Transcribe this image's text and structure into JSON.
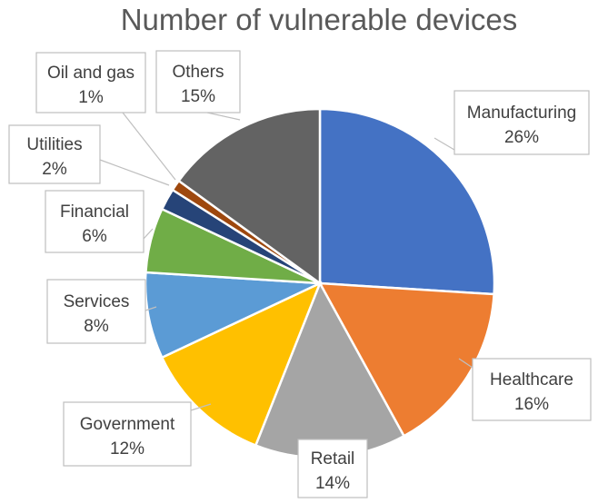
{
  "chart_data": {
    "type": "pie",
    "title": "Number of vulnerable devices",
    "slices": [
      {
        "label": "Manufacturing",
        "value": 26,
        "value_label": "26%",
        "color": "#4472C4"
      },
      {
        "label": "Healthcare",
        "value": 16,
        "value_label": "16%",
        "color": "#ED7D31"
      },
      {
        "label": "Retail",
        "value": 14,
        "value_label": "14%",
        "color": "#A5A5A5"
      },
      {
        "label": "Government",
        "value": 12,
        "value_label": "12%",
        "color": "#FFC000"
      },
      {
        "label": "Services",
        "value": 8,
        "value_label": "8%",
        "color": "#5B9BD5"
      },
      {
        "label": "Financial",
        "value": 6,
        "value_label": "6%",
        "color": "#70AD47"
      },
      {
        "label": "Utilities",
        "value": 2,
        "value_label": "2%",
        "color": "#264478"
      },
      {
        "label": "Oil and gas",
        "value": 1,
        "value_label": "1%",
        "color": "#9E480E"
      },
      {
        "label": "Others",
        "value": 15,
        "value_label": "15%",
        "color": "#636363"
      }
    ]
  }
}
